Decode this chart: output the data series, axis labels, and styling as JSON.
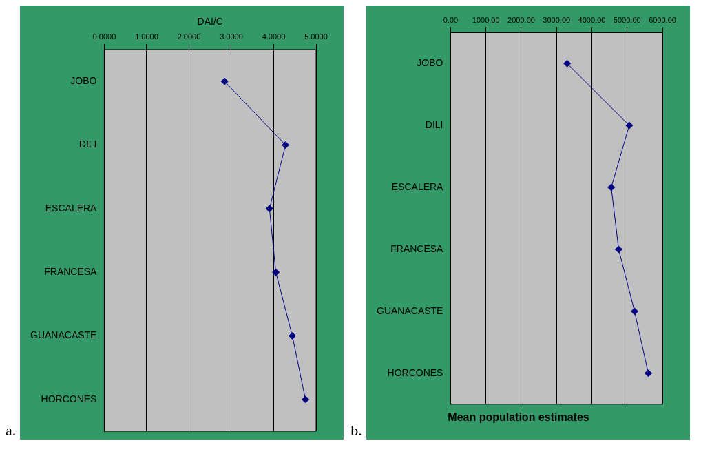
{
  "chart_data": [
    {
      "type": "line",
      "orientation": "horizontal",
      "xlabel": "DAI/C",
      "annotations": [
        "a."
      ],
      "categories": [
        "JOBO",
        "DILI",
        "ESCALERA",
        "FRANCESA",
        "GUANACASTE",
        "HORCONES"
      ],
      "series": [
        {
          "color": "#000080",
          "values": [
            2.84,
            4.28,
            3.9,
            4.05,
            4.44,
            4.75
          ]
        }
      ],
      "xlim": [
        0,
        5
      ],
      "xticks": [
        {
          "value": 0,
          "label": "0.0000"
        },
        {
          "value": 1,
          "label": "1.0000"
        },
        {
          "value": 2,
          "label": "2.0000"
        },
        {
          "value": 3,
          "label": "3.0000"
        },
        {
          "value": 4,
          "label": "4.0000"
        },
        {
          "value": 5,
          "label": "5.0000"
        }
      ],
      "grid": "x",
      "legend": false,
      "marker": "diamond",
      "line_style": "solid"
    },
    {
      "type": "line",
      "orientation": "horizontal",
      "title": "Mean population estimates",
      "annotations": [
        "b."
      ],
      "categories": [
        "JOBO",
        "DILI",
        "ESCALERA",
        "FRANCESA",
        "GUANACASTE",
        "HORCONES"
      ],
      "series": [
        {
          "color": "#000080",
          "values": [
            3300,
            5060,
            4550,
            4760,
            5210,
            5600
          ]
        }
      ],
      "xlim": [
        0,
        6000
      ],
      "xticks": [
        {
          "value": 0,
          "label": "0.00"
        },
        {
          "value": 1000,
          "label": "1000.00"
        },
        {
          "value": 2000,
          "label": "2000.00"
        },
        {
          "value": 3000,
          "label": "3000.00"
        },
        {
          "value": 4000,
          "label": "4000.00"
        },
        {
          "value": 5000,
          "label": "5000.00"
        },
        {
          "value": 6000,
          "label": "6000.00"
        }
      ],
      "grid": "x",
      "legend": false,
      "marker": "diamond",
      "line_style": "solid"
    }
  ]
}
